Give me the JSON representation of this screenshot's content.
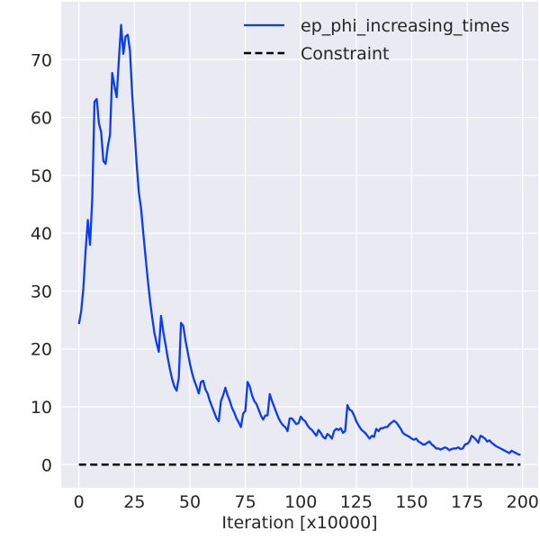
{
  "chart_data": {
    "type": "line",
    "title": "",
    "xlabel": "Iteration [x10000]",
    "ylabel": "",
    "xlim": [
      -8,
      207
    ],
    "ylim": [
      -4,
      80
    ],
    "xticks": [
      0,
      25,
      50,
      75,
      100,
      125,
      150,
      175,
      200
    ],
    "yticks": [
      0,
      10,
      20,
      30,
      40,
      50,
      60,
      70
    ],
    "grid": true,
    "legend_position": "top-right",
    "background_color": "#eaeaf2",
    "series": [
      {
        "name": "ep_phi_increasing_times",
        "color": "#0b3cf5",
        "style": "solid",
        "points": [
          [
            0,
            24.3
          ],
          [
            1,
            26.5
          ],
          [
            2,
            30.5
          ],
          [
            3,
            37.0
          ],
          [
            4,
            42.3
          ],
          [
            5,
            38.0
          ],
          [
            6,
            46.0
          ],
          [
            7,
            62.7
          ],
          [
            8,
            63.2
          ],
          [
            9,
            59.0
          ],
          [
            10,
            57.5
          ],
          [
            11,
            52.5
          ],
          [
            12,
            52.0
          ],
          [
            13,
            55.0
          ],
          [
            14,
            57.0
          ],
          [
            15,
            67.7
          ],
          [
            16,
            65.5
          ],
          [
            17,
            63.5
          ],
          [
            18,
            70.0
          ],
          [
            19,
            76.0
          ],
          [
            20,
            71.0
          ],
          [
            21,
            74.0
          ],
          [
            22,
            74.3
          ],
          [
            23,
            71.5
          ],
          [
            24,
            64.0
          ],
          [
            25,
            58.0
          ],
          [
            26,
            52.0
          ],
          [
            27,
            47.0
          ],
          [
            28,
            44.3
          ],
          [
            29,
            40.0
          ],
          [
            30,
            36.0
          ],
          [
            31,
            32.0
          ],
          [
            32,
            28.5
          ],
          [
            33,
            25.5
          ],
          [
            34,
            22.8
          ],
          [
            35,
            21.0
          ],
          [
            36,
            19.5
          ],
          [
            37,
            25.7
          ],
          [
            38,
            23.0
          ],
          [
            39,
            20.8
          ],
          [
            40,
            18.5
          ],
          [
            41,
            16.5
          ],
          [
            42,
            14.8
          ],
          [
            43,
            13.5
          ],
          [
            44,
            12.8
          ],
          [
            45,
            15.0
          ],
          [
            46,
            24.5
          ],
          [
            47,
            24.0
          ],
          [
            48,
            21.5
          ],
          [
            49,
            19.5
          ],
          [
            50,
            17.5
          ],
          [
            51,
            15.8
          ],
          [
            52,
            14.5
          ],
          [
            53,
            13.5
          ],
          [
            54,
            12.3
          ],
          [
            55,
            14.3
          ],
          [
            56,
            14.5
          ],
          [
            57,
            13.0
          ],
          [
            58,
            12.3
          ],
          [
            59,
            11.0
          ],
          [
            60,
            10.0
          ],
          [
            61,
            9.0
          ],
          [
            62,
            8.0
          ],
          [
            63,
            7.5
          ],
          [
            64,
            11.0
          ],
          [
            65,
            12.0
          ],
          [
            66,
            13.3
          ],
          [
            67,
            12.0
          ],
          [
            68,
            11.0
          ],
          [
            69,
            9.8
          ],
          [
            70,
            9.0
          ],
          [
            71,
            8.0
          ],
          [
            72,
            7.3
          ],
          [
            73,
            6.5
          ],
          [
            74,
            8.8
          ],
          [
            75,
            9.3
          ],
          [
            76,
            14.3
          ],
          [
            77,
            13.5
          ],
          [
            78,
            12.0
          ],
          [
            79,
            11.0
          ],
          [
            80,
            10.5
          ],
          [
            81,
            9.5
          ],
          [
            82,
            8.5
          ],
          [
            83,
            7.8
          ],
          [
            84,
            8.5
          ],
          [
            85,
            8.5
          ],
          [
            86,
            12.2
          ],
          [
            87,
            11.0
          ],
          [
            88,
            10.0
          ],
          [
            89,
            9.0
          ],
          [
            90,
            8.0
          ],
          [
            91,
            7.3
          ],
          [
            92,
            6.8
          ],
          [
            93,
            6.5
          ],
          [
            94,
            5.8
          ],
          [
            95,
            8.0
          ],
          [
            96,
            8.0
          ],
          [
            97,
            7.5
          ],
          [
            98,
            7.0
          ],
          [
            99,
            7.2
          ],
          [
            100,
            8.3
          ],
          [
            101,
            7.8
          ],
          [
            102,
            7.5
          ],
          [
            103,
            6.8
          ],
          [
            104,
            6.3
          ],
          [
            105,
            6.0
          ],
          [
            106,
            5.5
          ],
          [
            107,
            5.0
          ],
          [
            108,
            6.0
          ],
          [
            109,
            5.5
          ],
          [
            110,
            4.8
          ],
          [
            111,
            4.5
          ],
          [
            112,
            5.3
          ],
          [
            113,
            5.0
          ],
          [
            114,
            4.5
          ],
          [
            115,
            5.8
          ],
          [
            116,
            6.2
          ],
          [
            117,
            6.0
          ],
          [
            118,
            6.3
          ],
          [
            119,
            5.5
          ],
          [
            120,
            5.8
          ],
          [
            121,
            10.3
          ],
          [
            122,
            9.5
          ],
          [
            123,
            9.3
          ],
          [
            124,
            8.5
          ],
          [
            125,
            7.5
          ],
          [
            126,
            6.8
          ],
          [
            127,
            6.2
          ],
          [
            128,
            5.8
          ],
          [
            129,
            5.5
          ],
          [
            130,
            5.0
          ],
          [
            131,
            4.5
          ],
          [
            132,
            5.0
          ],
          [
            133,
            4.8
          ],
          [
            134,
            6.2
          ],
          [
            135,
            5.8
          ],
          [
            136,
            6.3
          ],
          [
            137,
            6.3
          ],
          [
            138,
            6.5
          ],
          [
            139,
            6.5
          ],
          [
            140,
            7.0
          ],
          [
            141,
            7.3
          ],
          [
            142,
            7.6
          ],
          [
            143,
            7.3
          ],
          [
            144,
            6.8
          ],
          [
            145,
            6.2
          ],
          [
            146,
            5.5
          ],
          [
            147,
            5.2
          ],
          [
            148,
            5.0
          ],
          [
            149,
            4.8
          ],
          [
            150,
            4.5
          ],
          [
            151,
            4.3
          ],
          [
            152,
            4.5
          ],
          [
            153,
            4.0
          ],
          [
            154,
            3.8
          ],
          [
            155,
            3.5
          ],
          [
            156,
            3.5
          ],
          [
            157,
            3.8
          ],
          [
            158,
            4.0
          ],
          [
            159,
            3.5
          ],
          [
            160,
            3.2
          ],
          [
            161,
            2.8
          ],
          [
            162,
            2.8
          ],
          [
            163,
            2.6
          ],
          [
            164,
            2.8
          ],
          [
            165,
            3.0
          ],
          [
            166,
            2.8
          ],
          [
            167,
            2.5
          ],
          [
            168,
            2.7
          ],
          [
            169,
            2.8
          ],
          [
            170,
            2.8
          ],
          [
            171,
            3.0
          ],
          [
            172,
            2.7
          ],
          [
            173,
            2.8
          ],
          [
            174,
            3.5
          ],
          [
            175,
            3.6
          ],
          [
            176,
            4.0
          ],
          [
            177,
            5.0
          ],
          [
            178,
            4.7
          ],
          [
            179,
            4.3
          ],
          [
            180,
            3.8
          ],
          [
            181,
            5.0
          ],
          [
            182,
            4.8
          ],
          [
            183,
            4.5
          ],
          [
            184,
            4.0
          ],
          [
            185,
            4.2
          ],
          [
            186,
            3.8
          ],
          [
            187,
            3.5
          ],
          [
            188,
            3.2
          ],
          [
            189,
            3.0
          ],
          [
            190,
            2.8
          ],
          [
            191,
            2.6
          ],
          [
            192,
            2.4
          ],
          [
            193,
            2.2
          ],
          [
            194,
            2.0
          ],
          [
            195,
            2.4
          ],
          [
            196,
            2.2
          ],
          [
            197,
            2.0
          ],
          [
            198,
            1.8
          ],
          [
            199,
            1.7
          ]
        ]
      },
      {
        "name": "Constraint",
        "color": "#000000",
        "style": "dashed",
        "points": [
          [
            0,
            0
          ],
          [
            199,
            0
          ]
        ]
      }
    ]
  }
}
